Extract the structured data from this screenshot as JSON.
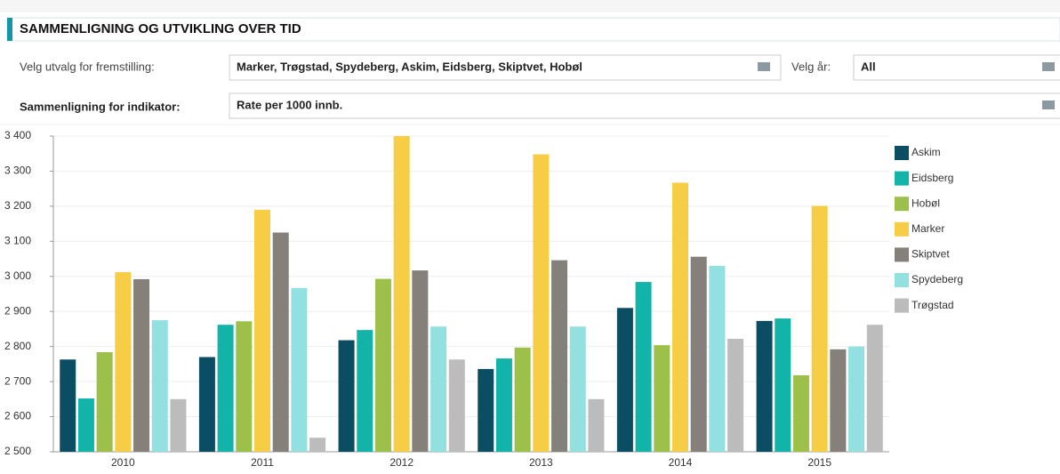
{
  "header": {
    "title": "SAMMENLIGNING OG UTVIKLING OVER TID"
  },
  "filters": [
    {
      "label": "Velg utvalg for fremstilling:",
      "value": "Marker, Trøgstad, Spydeberg, Askim, Eidsberg, Skiptvet, Hobøl"
    },
    {
      "label": "Velg år:",
      "value": "All"
    },
    {
      "label": "Sammenligning for indikator:",
      "value": "Rate per 1000 innb."
    }
  ],
  "chart_data": {
    "type": "bar",
    "categories": [
      "2010",
      "2011",
      "2012",
      "2013",
      "2014",
      "2015"
    ],
    "series": [
      {
        "name": "Askim",
        "color": "#0b4d63",
        "values": [
          2763,
          2770,
          2818,
          2736,
          2910,
          2873
        ]
      },
      {
        "name": "Eidsberg",
        "color": "#12b3a8",
        "values": [
          2652,
          2862,
          2847,
          2766,
          2984,
          2880
        ]
      },
      {
        "name": "Hobøl",
        "color": "#9cc04a",
        "values": [
          2784,
          2872,
          2993,
          2797,
          2804,
          2718
        ]
      },
      {
        "name": "Marker",
        "color": "#f7cd45",
        "values": [
          3012,
          3190,
          3400,
          3348,
          3267,
          3201
        ]
      },
      {
        "name": "Skiptvet",
        "color": "#86807a",
        "values": [
          2992,
          3125,
          3017,
          3046,
          3056,
          2792
        ]
      },
      {
        "name": "Spydeberg",
        "color": "#92e0e0",
        "values": [
          2875,
          2967,
          2857,
          2857,
          3030,
          2800
        ]
      },
      {
        "name": "Trøgstad",
        "color": "#bcbcbc",
        "values": [
          2650,
          2540,
          2763,
          2650,
          2822,
          2862
        ]
      }
    ],
    "ylim": [
      2500,
      3400
    ],
    "yticks": [
      {
        "value": 2500,
        "label": "2 500"
      },
      {
        "value": 2600,
        "label": "2 600"
      },
      {
        "value": 2700,
        "label": "2 700"
      },
      {
        "value": 2800,
        "label": "2 800"
      },
      {
        "value": 2900,
        "label": "2 900"
      },
      {
        "value": 3000,
        "label": "3 000"
      },
      {
        "value": 3100,
        "label": "3 100"
      },
      {
        "value": 3200,
        "label": "3 200"
      },
      {
        "value": 3300,
        "label": "3 300"
      },
      {
        "value": 3400,
        "label": "3 400"
      }
    ],
    "grid": true
  }
}
